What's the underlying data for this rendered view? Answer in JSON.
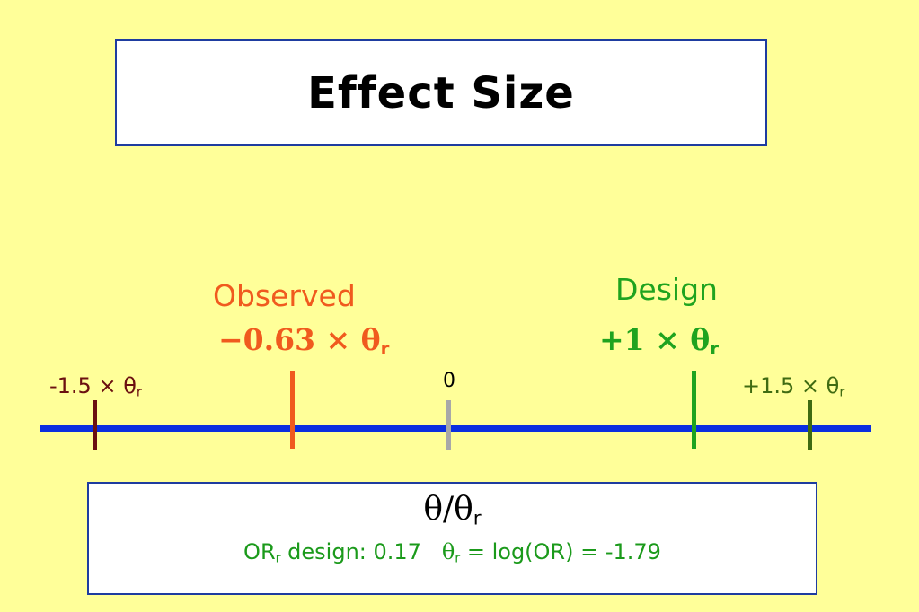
{
  "title": "Effect Size",
  "axis": {
    "line_color": "#0a2ee0",
    "markers": [
      {
        "id": "min",
        "value": -1.5,
        "label": "-1.5 × θ",
        "sub": "r",
        "color": "#6b1010"
      },
      {
        "id": "observed",
        "value": -0.63,
        "heading": "Observed",
        "label": "−0.63 × θ",
        "sub": "r",
        "color": "#f05a1e"
      },
      {
        "id": "zero",
        "value": 0,
        "label": "0",
        "color": "#a8a8a8"
      },
      {
        "id": "design",
        "value": 1,
        "heading": "Design",
        "label": "+1 × θ",
        "sub": "r",
        "color": "#1fa31f"
      },
      {
        "id": "max",
        "value": 1.5,
        "label": "+1.5 × θ",
        "sub": "r",
        "color": "#3f6b12"
      }
    ]
  },
  "info": {
    "ratio_prefix": "θ/θ",
    "ratio_sub": "r",
    "or_prefix": "OR",
    "or_sub": "r",
    "or_text": " design: 0.17",
    "theta_symbol": "θ",
    "theta_sub": "r",
    "theta_text": " = log(OR) = -1.79"
  }
}
